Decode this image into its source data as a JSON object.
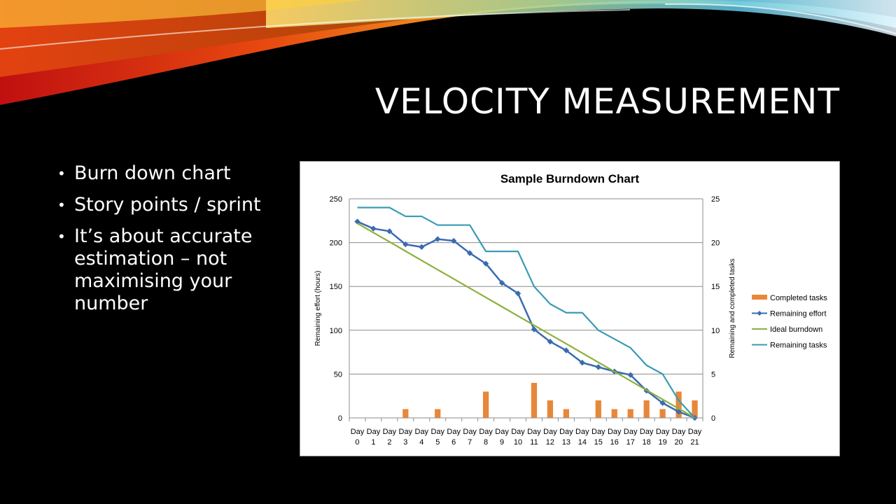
{
  "slide": {
    "title": "VELOCITY MEASUREMENT",
    "bullets": [
      "Burn down chart",
      "Story points / sprint",
      "It’s about accurate estimation – not maximising your number"
    ]
  },
  "colors": {
    "completed_tasks": "#E8873A",
    "remaining_effort": "#3A6BB0",
    "ideal_burndown": "#8DB03C",
    "remaining_tasks": "#3A9BB5",
    "gridline": "#8C8C8C"
  },
  "chart_data": {
    "type": "bar",
    "title": "Sample Burndown Chart",
    "ylabel": "Remaining effort (hours)",
    "y2label": "Remaining and completed tasks",
    "ylim": [
      0,
      250
    ],
    "y2lim": [
      0,
      25
    ],
    "yticks": [
      0,
      50,
      100,
      150,
      200,
      250
    ],
    "y2ticks": [
      0,
      5,
      10,
      15,
      20,
      25
    ],
    "grid": true,
    "legend_position": "right",
    "categories": [
      [
        "Day",
        "0"
      ],
      [
        "Day",
        "1"
      ],
      [
        "Day",
        "2"
      ],
      [
        "Day",
        "3"
      ],
      [
        "Day",
        "4"
      ],
      [
        "Day",
        "5"
      ],
      [
        "Day",
        "6"
      ],
      [
        "Day",
        "7"
      ],
      [
        "Day",
        "8"
      ],
      [
        "Day",
        "9"
      ],
      [
        "Day",
        "10"
      ],
      [
        "Day",
        "11"
      ],
      [
        "Day",
        "12"
      ],
      [
        "Day",
        "13"
      ],
      [
        "Day",
        "14"
      ],
      [
        "Day",
        "15"
      ],
      [
        "Day",
        "16"
      ],
      [
        "Day",
        "17"
      ],
      [
        "Day",
        "18"
      ],
      [
        "Day",
        "19"
      ],
      [
        "Day",
        "20"
      ],
      [
        "Day",
        "21"
      ]
    ],
    "series": [
      {
        "name": "Completed tasks",
        "type": "bar",
        "axis": "right",
        "values": [
          0,
          0,
          0,
          1,
          0,
          1,
          0,
          0,
          3,
          0,
          0,
          4,
          2,
          1,
          0,
          2,
          1,
          1,
          2,
          1,
          3,
          2
        ]
      },
      {
        "name": "Remaining effort",
        "type": "line-marker",
        "axis": "left",
        "values": [
          224,
          216,
          213,
          198,
          195,
          204,
          202,
          188,
          176,
          154,
          142,
          101,
          87,
          77,
          63,
          58,
          53,
          49,
          31,
          17,
          7,
          0
        ]
      },
      {
        "name": "Ideal burndown",
        "type": "line",
        "axis": "left",
        "values": [
          222,
          211.4,
          200.9,
          190.3,
          179.7,
          169.1,
          158.6,
          148,
          137.4,
          126.9,
          116.3,
          105.7,
          95.1,
          84.6,
          74,
          63.4,
          52.9,
          42.3,
          31.7,
          21.1,
          10.6,
          0
        ]
      },
      {
        "name": "Remaining tasks",
        "type": "line",
        "axis": "right",
        "values": [
          24,
          24,
          24,
          23,
          23,
          22,
          22,
          22,
          19,
          19,
          19,
          15,
          13,
          12,
          12,
          10,
          9,
          8,
          6,
          5,
          2,
          0
        ]
      }
    ]
  }
}
